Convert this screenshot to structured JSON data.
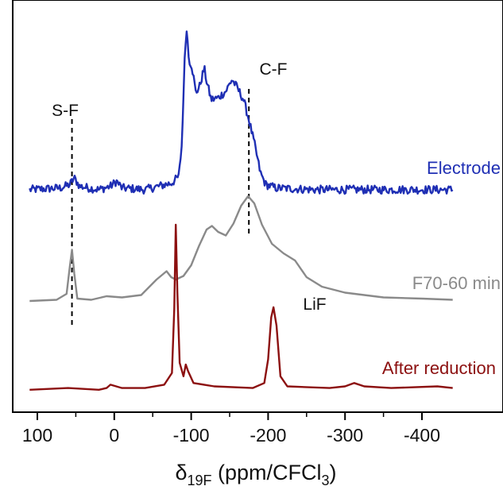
{
  "chart_data": {
    "type": "line",
    "xlabel": "δ19F (ppm/CFCl3)",
    "xlabel_parts": {
      "delta": "δ",
      "sub": "19F",
      "text": " (ppm/CFCl",
      "sub2": "3",
      "end": ")"
    },
    "xlim": [
      110,
      -440
    ],
    "x_reversed": true,
    "xticks": [
      100,
      0,
      -100,
      -200,
      -300,
      -400
    ],
    "xtick_labels": [
      "100",
      "0",
      "-100",
      "-200",
      "-300",
      "-400"
    ],
    "y_ticks_shown": false,
    "grid": false,
    "series": [
      {
        "name": "Electrode",
        "color": "#1f2fb4",
        "noise": true,
        "points": [
          [
            110,
            0.02
          ],
          [
            70,
            0.03
          ],
          [
            58,
            0.05
          ],
          [
            52,
            0.09
          ],
          [
            45,
            0.04
          ],
          [
            20,
            0.02
          ],
          [
            5,
            0.04
          ],
          [
            -3,
            0.07
          ],
          [
            -10,
            0.03
          ],
          [
            -40,
            0.02
          ],
          [
            -75,
            0.06
          ],
          [
            -84,
            0.1
          ],
          [
            -88,
            0.3
          ],
          [
            -91,
            0.75
          ],
          [
            -94,
            1.0
          ],
          [
            -97,
            0.8
          ],
          [
            -101,
            0.76
          ],
          [
            -106,
            0.6
          ],
          [
            -111,
            0.64
          ],
          [
            -117,
            0.75
          ],
          [
            -120,
            0.67
          ],
          [
            -126,
            0.56
          ],
          [
            -135,
            0.57
          ],
          [
            -145,
            0.61
          ],
          [
            -153,
            0.68
          ],
          [
            -160,
            0.63
          ],
          [
            -168,
            0.56
          ],
          [
            -175,
            0.44
          ],
          [
            -182,
            0.3
          ],
          [
            -190,
            0.12
          ],
          [
            -197,
            0.05
          ],
          [
            -210,
            0.03
          ],
          [
            -260,
            0.02
          ],
          [
            -320,
            0.02
          ],
          [
            -440,
            0.02
          ]
        ]
      },
      {
        "name": "F70-60 min",
        "color": "#8a8a8a",
        "noise": false,
        "points": [
          [
            110,
            0.02
          ],
          [
            75,
            0.03
          ],
          [
            62,
            0.08
          ],
          [
            58,
            0.3
          ],
          [
            55,
            0.45
          ],
          [
            52,
            0.25
          ],
          [
            48,
            0.04
          ],
          [
            30,
            0.03
          ],
          [
            10,
            0.06
          ],
          [
            -10,
            0.05
          ],
          [
            -35,
            0.07
          ],
          [
            -55,
            0.2
          ],
          [
            -68,
            0.27
          ],
          [
            -74,
            0.22
          ],
          [
            -80,
            0.2
          ],
          [
            -90,
            0.23
          ],
          [
            -100,
            0.32
          ],
          [
            -110,
            0.48
          ],
          [
            -120,
            0.62
          ],
          [
            -127,
            0.65
          ],
          [
            -135,
            0.6
          ],
          [
            -145,
            0.57
          ],
          [
            -155,
            0.67
          ],
          [
            -165,
            0.82
          ],
          [
            -174,
            0.9
          ],
          [
            -182,
            0.84
          ],
          [
            -192,
            0.66
          ],
          [
            -205,
            0.5
          ],
          [
            -220,
            0.42
          ],
          [
            -235,
            0.36
          ],
          [
            -250,
            0.22
          ],
          [
            -270,
            0.14
          ],
          [
            -300,
            0.09
          ],
          [
            -350,
            0.05
          ],
          [
            -400,
            0.04
          ],
          [
            -440,
            0.03
          ]
        ]
      },
      {
        "name": "After reduction",
        "color": "#8c1010",
        "noise": false,
        "points": [
          [
            110,
            0.02
          ],
          [
            60,
            0.03
          ],
          [
            20,
            0.02
          ],
          [
            10,
            0.03
          ],
          [
            5,
            0.05
          ],
          [
            -10,
            0.03
          ],
          [
            -40,
            0.03
          ],
          [
            -65,
            0.05
          ],
          [
            -75,
            0.12
          ],
          [
            -78,
            0.5
          ],
          [
            -80,
            1.0
          ],
          [
            -82,
            0.6
          ],
          [
            -85,
            0.18
          ],
          [
            -90,
            0.1
          ],
          [
            -93,
            0.17
          ],
          [
            -96,
            0.13
          ],
          [
            -103,
            0.06
          ],
          [
            -130,
            0.04
          ],
          [
            -180,
            0.03
          ],
          [
            -195,
            0.06
          ],
          [
            -200,
            0.2
          ],
          [
            -204,
            0.45
          ],
          [
            -207,
            0.51
          ],
          [
            -211,
            0.4
          ],
          [
            -216,
            0.1
          ],
          [
            -225,
            0.04
          ],
          [
            -280,
            0.03
          ],
          [
            -300,
            0.04
          ],
          [
            -312,
            0.06
          ],
          [
            -325,
            0.04
          ],
          [
            -360,
            0.03
          ],
          [
            -420,
            0.04
          ],
          [
            -440,
            0.03
          ]
        ]
      }
    ],
    "annotations": [
      {
        "text": "S-F",
        "x": 55
      },
      {
        "text": "C-F",
        "x": -175
      },
      {
        "text": "LiF",
        "x": -207
      }
    ]
  }
}
